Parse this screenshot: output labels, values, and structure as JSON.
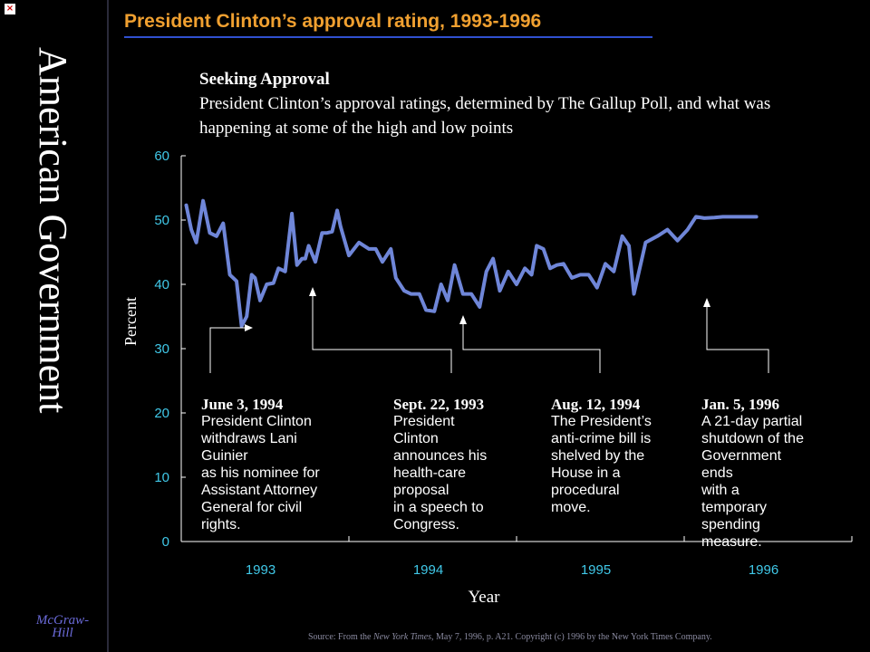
{
  "window": {
    "close_glyph": "×"
  },
  "sidebar": {
    "vertical_title": "American Government",
    "publisher_line1": "McGraw-",
    "publisher_line2": "Hill"
  },
  "slide_title": "President Clinton’s approval rating, 1993-1996",
  "subtitle": {
    "heading": "Seeking Approval",
    "body": "President Clinton’s approval ratings, determined by The Gallup Poll, and what was happening at some of the high and low points"
  },
  "colors": {
    "line": "#6f86d8",
    "title": "#f0a030",
    "tick_text": "#40c8e8",
    "axis": "#ffffff"
  },
  "annotations": [
    {
      "date": "June 3, 1994",
      "text": "President Clinton\nwithdraws Lani\nGuinier\nas his nominee for\nAssistant Attorney\nGeneral for civil\nrights."
    },
    {
      "date": "Sept. 22, 1993",
      "text": "President\nClinton\nannounces his\nhealth-care\nproposal\nin a speech to\nCongress."
    },
    {
      "date": "Aug. 12, 1994",
      "text": "The President’s\nanti-crime bill is\nshelved by the\nHouse in a\nprocedural\nmove."
    },
    {
      "date": "Jan. 5, 1996",
      "text": "A 21-day partial\nshutdown of the\nGovernment\nends\nwith a\ntemporary\nspending\nmeasure."
    }
  ],
  "source": {
    "prefix": "Source: From the ",
    "publication": "New York Times",
    "suffix": ", May 7, 1996, p. A21. Copyright (c) 1996 by the New York Times Company."
  },
  "chart_data": {
    "type": "line",
    "title": "Seeking Approval",
    "xlabel": "Year",
    "ylabel": "Percent",
    "ylim": [
      0,
      60
    ],
    "yticks": [
      0,
      10,
      20,
      30,
      40,
      50,
      60
    ],
    "xlim": [
      1993,
      1997
    ],
    "categories": [
      "1993",
      "1994",
      "1995",
      "1996"
    ],
    "grid": false,
    "series": [
      {
        "x": [
          1993.03,
          1993.06,
          1993.09,
          1993.13,
          1993.17,
          1993.21,
          1993.25,
          1993.29,
          1993.33,
          1993.36,
          1993.39,
          1993.42,
          1993.44,
          1993.47,
          1993.51,
          1993.55,
          1993.58,
          1993.62,
          1993.66,
          1993.69,
          1993.72,
          1993.74,
          1993.76,
          1993.8,
          1993.84,
          1993.87,
          1993.9,
          1993.93,
          1993.95,
          1994.0,
          1994.06,
          1994.12,
          1994.16,
          1994.2,
          1994.25,
          1994.28,
          1994.33,
          1994.37,
          1994.42,
          1994.46,
          1994.51,
          1994.55,
          1994.59,
          1994.63,
          1994.68,
          1994.73,
          1994.78,
          1994.82,
          1994.86,
          1994.9,
          1994.95,
          1995.0,
          1995.05,
          1995.09,
          1995.12,
          1995.16,
          1995.2,
          1995.24,
          1995.28,
          1995.33,
          1995.38,
          1995.43,
          1995.48,
          1995.53,
          1995.58,
          1995.63,
          1995.67,
          1995.7,
          1995.77,
          1995.84,
          1995.9,
          1995.96,
          1996.02,
          1996.07,
          1996.12,
          1996.18,
          1996.23,
          1996.27,
          1996.33,
          1996.38,
          1996.43
        ],
        "values": [
          52.3,
          48.5,
          46.5,
          53.0,
          48.0,
          47.5,
          49.5,
          41.5,
          40.5,
          33.5,
          35.0,
          41.5,
          41.0,
          37.5,
          40.0,
          40.2,
          42.5,
          42.0,
          51.0,
          43.0,
          44.0,
          44.0,
          46.0,
          43.5,
          48.0,
          48.0,
          48.2,
          51.5,
          49.0,
          44.5,
          46.5,
          45.5,
          45.5,
          43.5,
          45.5,
          41.0,
          39.0,
          38.5,
          38.5,
          36.0,
          35.8,
          40.0,
          37.5,
          43.0,
          38.5,
          38.5,
          36.5,
          42.0,
          44.0,
          39.0,
          42.0,
          40.0,
          42.5,
          41.5,
          46.0,
          45.5,
          42.5,
          43.0,
          43.2,
          41.0,
          41.5,
          41.5,
          39.5,
          43.2,
          42.0,
          47.5,
          46.0,
          38.5,
          46.5,
          47.5,
          48.5,
          46.8,
          48.5,
          50.5,
          50.3,
          50.4,
          50.5,
          50.5,
          50.5,
          50.5,
          50.5
        ]
      }
    ]
  }
}
